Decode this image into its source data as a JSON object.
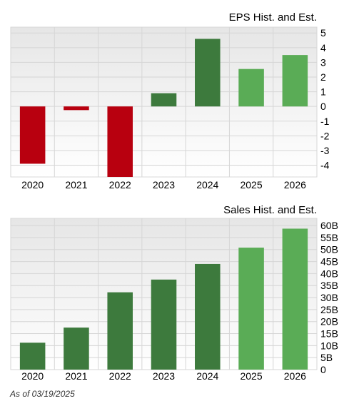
{
  "chart_data": [
    {
      "type": "bar",
      "title": "EPS Hist. and Est.",
      "categories": [
        "2020",
        "2021",
        "2022",
        "2023",
        "2024",
        "2025",
        "2026"
      ],
      "values": [
        -3.9,
        -0.25,
        -4.8,
        0.9,
        4.6,
        2.55,
        3.5
      ],
      "kind": [
        "historical",
        "historical",
        "historical",
        "historical",
        "historical",
        "estimate",
        "estimate"
      ],
      "ylim": [
        -4.8,
        5.4
      ],
      "yticks": [
        5,
        4,
        3,
        2,
        1,
        0,
        -1,
        -2,
        -3,
        -4
      ],
      "ytick_labels": [
        "5",
        "4",
        "3",
        "2",
        "1",
        "0",
        "-1",
        "-2",
        "-3",
        "-4"
      ],
      "grid": true,
      "colors": {
        "negative": "#b8000f",
        "historical": "#3d7a3d",
        "estimate": "#5aac56"
      }
    },
    {
      "type": "bar",
      "title": "Sales Hist. and Est.",
      "categories": [
        "2020",
        "2021",
        "2022",
        "2023",
        "2024",
        "2025",
        "2026"
      ],
      "values": [
        11.2,
        17.5,
        32.2,
        37.5,
        44.0,
        50.8,
        58.7
      ],
      "kind": [
        "historical",
        "historical",
        "historical",
        "historical",
        "historical",
        "estimate",
        "estimate"
      ],
      "ylim": [
        0,
        63
      ],
      "yticks": [
        60,
        55,
        50,
        45,
        40,
        35,
        30,
        25,
        20,
        15,
        10,
        5,
        0
      ],
      "ytick_labels": [
        "60B",
        "55B",
        "50B",
        "45B",
        "40B",
        "35B",
        "30B",
        "25B",
        "20B",
        "15B",
        "10B",
        "5B",
        "0"
      ],
      "unit": "B",
      "grid": true,
      "colors": {
        "historical": "#3d7a3d",
        "estimate": "#5aac56"
      }
    }
  ],
  "footnote": "As of 03/19/2025"
}
